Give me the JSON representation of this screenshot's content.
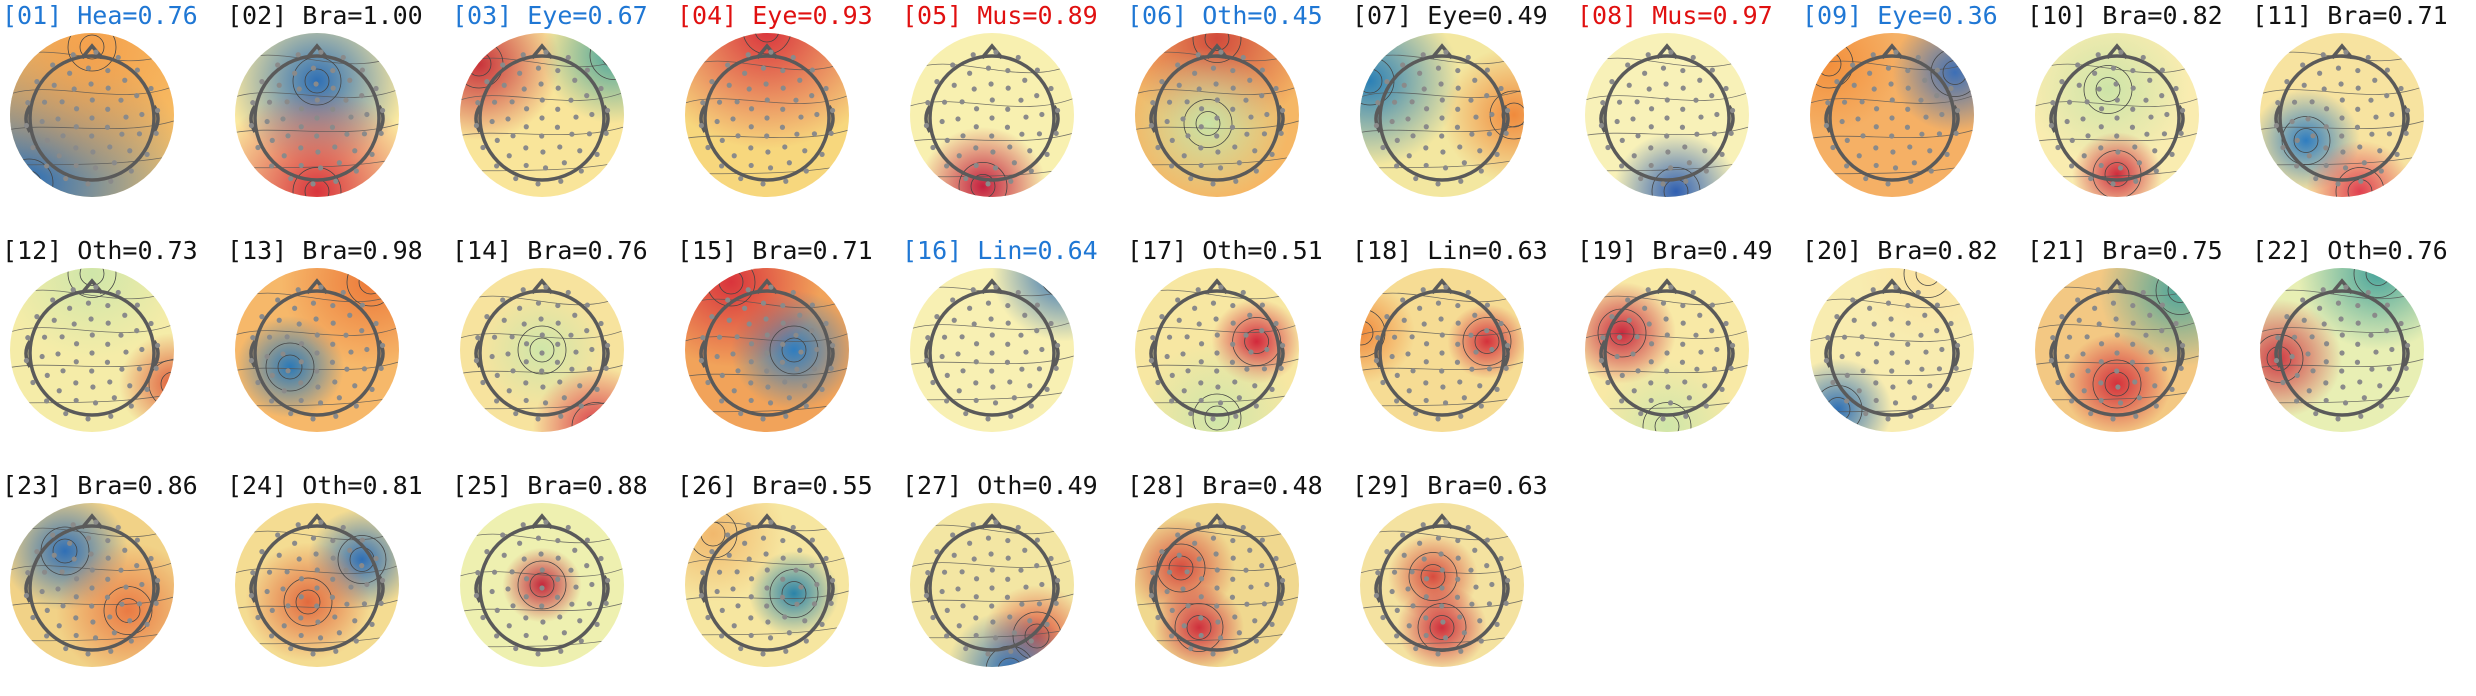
{
  "figure": {
    "label_colors": {
      "black": "#111111",
      "blue": "#1f77d4",
      "red": "#e01010"
    },
    "components": [
      {
        "index": "01",
        "label": "[01] Hea=0.76",
        "cat": "Hea",
        "prob": 0.76,
        "color": "blue"
      },
      {
        "index": "02",
        "label": "[02] Bra=1.00",
        "cat": "Bra",
        "prob": 1.0,
        "color": "black"
      },
      {
        "index": "03",
        "label": "[03] Eye=0.67",
        "cat": "Eye",
        "prob": 0.67,
        "color": "blue"
      },
      {
        "index": "04",
        "label": "[04] Eye=0.93",
        "cat": "Eye",
        "prob": 0.93,
        "color": "red"
      },
      {
        "index": "05",
        "label": "[05] Mus=0.89",
        "cat": "Mus",
        "prob": 0.89,
        "color": "red"
      },
      {
        "index": "06",
        "label": "[06] Oth=0.45",
        "cat": "Oth",
        "prob": 0.45,
        "color": "blue"
      },
      {
        "index": "07",
        "label": "[07] Eye=0.49",
        "cat": "Eye",
        "prob": 0.49,
        "color": "black"
      },
      {
        "index": "08",
        "label": "[08] Mus=0.97",
        "cat": "Mus",
        "prob": 0.97,
        "color": "red"
      },
      {
        "index": "09",
        "label": "[09] Eye=0.36",
        "cat": "Eye",
        "prob": 0.36,
        "color": "blue"
      },
      {
        "index": "10",
        "label": "[10] Bra=0.82",
        "cat": "Bra",
        "prob": 0.82,
        "color": "black"
      },
      {
        "index": "11",
        "label": "[11] Bra=0.71",
        "cat": "Bra",
        "prob": 0.71,
        "color": "black"
      },
      {
        "index": "12",
        "label": "[12] Oth=0.73",
        "cat": "Oth",
        "prob": 0.73,
        "color": "black"
      },
      {
        "index": "13",
        "label": "[13] Bra=0.98",
        "cat": "Bra",
        "prob": 0.98,
        "color": "black"
      },
      {
        "index": "14",
        "label": "[14] Bra=0.76",
        "cat": "Bra",
        "prob": 0.76,
        "color": "black"
      },
      {
        "index": "15",
        "label": "[15] Bra=0.71",
        "cat": "Bra",
        "prob": 0.71,
        "color": "black"
      },
      {
        "index": "16",
        "label": "[16] Lin=0.64",
        "cat": "Lin",
        "prob": 0.64,
        "color": "blue"
      },
      {
        "index": "17",
        "label": "[17] Oth=0.51",
        "cat": "Oth",
        "prob": 0.51,
        "color": "black"
      },
      {
        "index": "18",
        "label": "[18] Lin=0.63",
        "cat": "Lin",
        "prob": 0.63,
        "color": "black"
      },
      {
        "index": "19",
        "label": "[19] Bra=0.49",
        "cat": "Bra",
        "prob": 0.49,
        "color": "black"
      },
      {
        "index": "20",
        "label": "[20] Bra=0.82",
        "cat": "Bra",
        "prob": 0.82,
        "color": "black"
      },
      {
        "index": "21",
        "label": "[21] Bra=0.75",
        "cat": "Bra",
        "prob": 0.75,
        "color": "black"
      },
      {
        "index": "22",
        "label": "[22] Oth=0.76",
        "cat": "Oth",
        "prob": 0.76,
        "color": "black"
      },
      {
        "index": "23",
        "label": "[23] Bra=0.86",
        "cat": "Bra",
        "prob": 0.86,
        "color": "black"
      },
      {
        "index": "24",
        "label": "[24] Oth=0.81",
        "cat": "Oth",
        "prob": 0.81,
        "color": "black"
      },
      {
        "index": "25",
        "label": "[25] Bra=0.88",
        "cat": "Bra",
        "prob": 0.88,
        "color": "black"
      },
      {
        "index": "26",
        "label": "[26] Bra=0.55",
        "cat": "Bra",
        "prob": 0.55,
        "color": "black"
      },
      {
        "index": "27",
        "label": "[27] Oth=0.49",
        "cat": "Oth",
        "prob": 0.49,
        "color": "black"
      },
      {
        "index": "28",
        "label": "[28] Bra=0.48",
        "cat": "Bra",
        "prob": 0.48,
        "color": "black"
      },
      {
        "index": "29",
        "label": "[29] Bra=0.63",
        "cat": "Bra",
        "prob": 0.63,
        "color": "black"
      }
    ]
  }
}
